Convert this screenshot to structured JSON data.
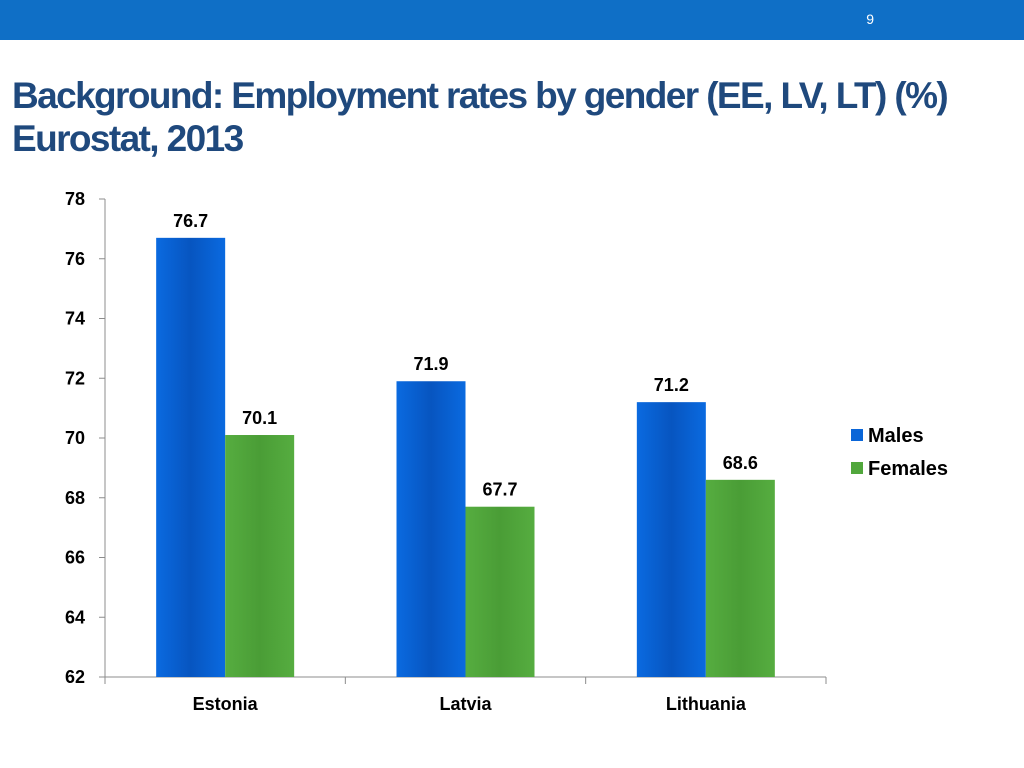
{
  "slide": {
    "number": "9",
    "title": "Background: Employment rates by gender (EE, LV, LT) (%) Eurostat, 2013"
  },
  "colors": {
    "top_bar": "#0f6fc6",
    "title": "#1f497d",
    "males": "#0a66d8",
    "males_dark": "#0753b8",
    "females": "#51a73c",
    "females_dark": "#3f8e2c"
  },
  "chart_data": {
    "type": "bar",
    "categories": [
      "Estonia",
      "Latvia",
      "Lithuania"
    ],
    "series": [
      {
        "name": "Males",
        "values": [
          76.7,
          71.9,
          71.2
        ]
      },
      {
        "name": "Females",
        "values": [
          70.1,
          67.7,
          68.6
        ]
      }
    ],
    "ylim": [
      62,
      78
    ],
    "yticks": [
      62,
      64,
      66,
      68,
      70,
      72,
      74,
      76,
      78
    ],
    "xlabel": "",
    "ylabel": "",
    "legend": "right",
    "grid": false
  }
}
